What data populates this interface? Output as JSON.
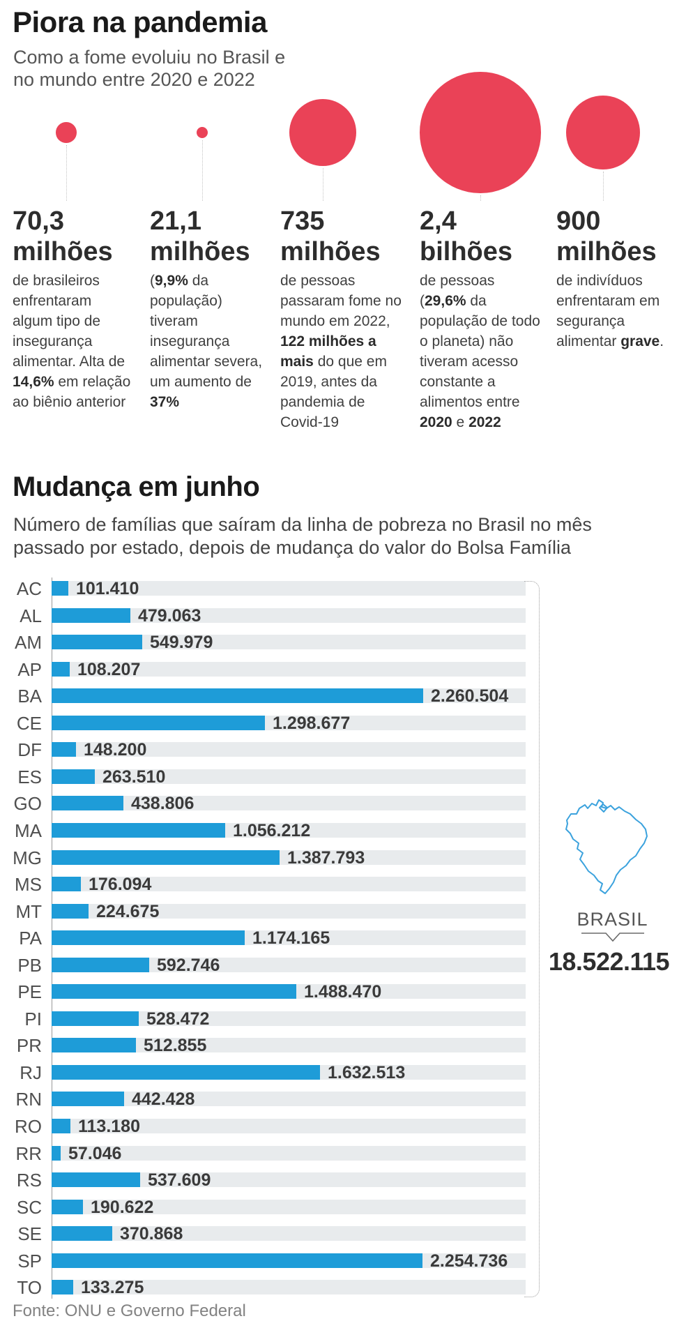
{
  "section1": {
    "title": "Piora na pandemia",
    "subtitle_lines": [
      "Como a fome evoluiu no Brasil e",
      "no mundo entre 2020 e 2022"
    ],
    "accent_color": "#ea4257",
    "stats": [
      {
        "value": "70,3",
        "unit": "milhões",
        "value_millions": 70.3,
        "desc": [
          {
            "t": "de brasileiros enfrentaram algum tipo de insegurança alimentar. Alta de "
          },
          {
            "t": "14,6%",
            "b": true
          },
          {
            "t": " em relação ao biênio anterior"
          }
        ]
      },
      {
        "value": "21,1",
        "unit": "milhões",
        "value_millions": 21.1,
        "desc": [
          {
            "t": "("
          },
          {
            "t": "9,9%",
            "b": true
          },
          {
            "t": " da população) tiveram insegurança alimentar severa, um aumento de "
          },
          {
            "t": "37%",
            "b": true
          }
        ]
      },
      {
        "value": "735",
        "unit": "milhões",
        "value_millions": 735,
        "desc": [
          {
            "t": "de pessoas passaram fome no mundo em 2022, "
          },
          {
            "t": "122 milhões a mais",
            "b": true
          },
          {
            "t": " do que em 2019, antes da pandemia de Covid-19"
          }
        ]
      },
      {
        "value": "2,4",
        "unit": "bilhões",
        "value_millions": 2400,
        "desc": [
          {
            "t": "de pessoas ("
          },
          {
            "t": "29,6%",
            "b": true
          },
          {
            "t": " da população de todo o planeta) não tiveram acesso constante a alimentos entre "
          },
          {
            "t": "2020",
            "b": true
          },
          {
            "t": " e "
          },
          {
            "t": "2022",
            "b": true
          }
        ]
      },
      {
        "value": "900",
        "unit": "milhões",
        "value_millions": 900,
        "desc": [
          {
            "t": "de indivíduos enfrentaram em segurança alimentar "
          },
          {
            "t": "grave",
            "b": true
          },
          {
            "t": "."
          }
        ]
      }
    ]
  },
  "section2": {
    "title": "Mudança em junho",
    "subtitle_lines": [
      "Número de famílias que saíram da linha de pobreza no Brasil no mês",
      "passado por estado, depois de mudança do valor do Bolsa Família"
    ],
    "bar_color": "#1e9cd8",
    "track_color": "#e8ebed",
    "map_outline_color": "#3ba2dd",
    "total_label": "BRASIL",
    "total_value": "18.522.115",
    "source": "Fonte: ONU e Governo Federal",
    "rows": [
      {
        "state": "AC",
        "label": "101.410",
        "value": 101410
      },
      {
        "state": "AL",
        "label": "479.063",
        "value": 479063
      },
      {
        "state": "AM",
        "label": "549.979",
        "value": 549979
      },
      {
        "state": "AP",
        "label": "108.207",
        "value": 108207
      },
      {
        "state": "BA",
        "label": "2.260.504",
        "value": 2260504
      },
      {
        "state": "CE",
        "label": "1.298.677",
        "value": 1298677
      },
      {
        "state": "DF",
        "label": "148.200",
        "value": 148200
      },
      {
        "state": "ES",
        "label": "263.510",
        "value": 263510
      },
      {
        "state": "GO",
        "label": "438.806",
        "value": 438806
      },
      {
        "state": "MA",
        "label": "1.056.212",
        "value": 1056212
      },
      {
        "state": "MG",
        "label": "1.387.793",
        "value": 1387793
      },
      {
        "state": "MS",
        "label": "176.094",
        "value": 176094
      },
      {
        "state": "MT",
        "label": "224.675",
        "value": 224675
      },
      {
        "state": "PA",
        "label": "1.174.165",
        "value": 1174165
      },
      {
        "state": "PB",
        "label": "592.746",
        "value": 592746
      },
      {
        "state": "PE",
        "label": "1.488.470",
        "value": 1488470
      },
      {
        "state": "PI",
        "label": "528.472",
        "value": 528472
      },
      {
        "state": "PR",
        "label": "512.855",
        "value": 512855
      },
      {
        "state": "RJ",
        "label": "1.632.513",
        "value": 1632513
      },
      {
        "state": "RN",
        "label": "442.428",
        "value": 442428
      },
      {
        "state": "RO",
        "label": "113.180",
        "value": 113180
      },
      {
        "state": "RR",
        "label": "57.046",
        "value": 57046
      },
      {
        "state": "RS",
        "label": "537.609",
        "value": 537609
      },
      {
        "state": "SC",
        "label": "190.622",
        "value": 190622
      },
      {
        "state": "SE",
        "label": "370.868",
        "value": 370868
      },
      {
        "state": "SP",
        "label": "2.254.736",
        "value": 2254736
      },
      {
        "state": "TO",
        "label": "133.275",
        "value": 133275
      }
    ]
  },
  "chart_data": [
    {
      "type": "bubble",
      "title": "Piora na pandemia",
      "subtitle": "Como a fome evoluiu no Brasil e no mundo entre 2020 e 2022",
      "items": [
        {
          "label": "70,3 milhões",
          "value_millions": 70.3,
          "note": "de brasileiros enfrentaram algum tipo de insegurança alimentar. Alta de 14,6% em relação ao biênio anterior"
        },
        {
          "label": "21,1 milhões",
          "value_millions": 21.1,
          "note": "(9,9% da população) tiveram insegurança alimentar severa, um aumento de 37%"
        },
        {
          "label": "735 milhões",
          "value_millions": 735,
          "note": "de pessoas passaram fome no mundo em 2022, 122 milhões a mais do que em 2019, antes da pandemia de Covid-19"
        },
        {
          "label": "2,4 bilhões",
          "value_millions": 2400,
          "note": "de pessoas (29,6% da população de todo o planeta) não tiveram acesso constante a alimentos entre 2020 e 2022"
        },
        {
          "label": "900 milhões",
          "value_millions": 900,
          "note": "de indivíduos enfrentaram em segurança alimentar grave."
        }
      ],
      "bubble_color": "#ea4257",
      "area_proportional": true
    },
    {
      "type": "bar",
      "orientation": "horizontal",
      "title": "Mudança em junho",
      "subtitle": "Número de famílias que saíram da linha de pobreza no Brasil no mês passado por estado, depois de mudança do valor do Bolsa Família",
      "categories": [
        "AC",
        "AL",
        "AM",
        "AP",
        "BA",
        "CE",
        "DF",
        "ES",
        "GO",
        "MA",
        "MG",
        "MS",
        "MT",
        "PA",
        "PB",
        "PE",
        "PI",
        "PR",
        "RJ",
        "RN",
        "RO",
        "RR",
        "RS",
        "SC",
        "SE",
        "SP",
        "TO"
      ],
      "values": [
        101410,
        479063,
        549979,
        108207,
        2260504,
        1298677,
        148200,
        263510,
        438806,
        1056212,
        1387793,
        176094,
        224675,
        1174165,
        592746,
        1488470,
        528472,
        512855,
        1632513,
        442428,
        113180,
        57046,
        537609,
        190622,
        370868,
        2254736,
        133275
      ],
      "total": {
        "label": "BRASIL",
        "value": 18522115
      },
      "xlim": [
        0,
        2880000
      ],
      "grid": false,
      "source": "Fonte: ONU e Governo Federal"
    }
  ]
}
